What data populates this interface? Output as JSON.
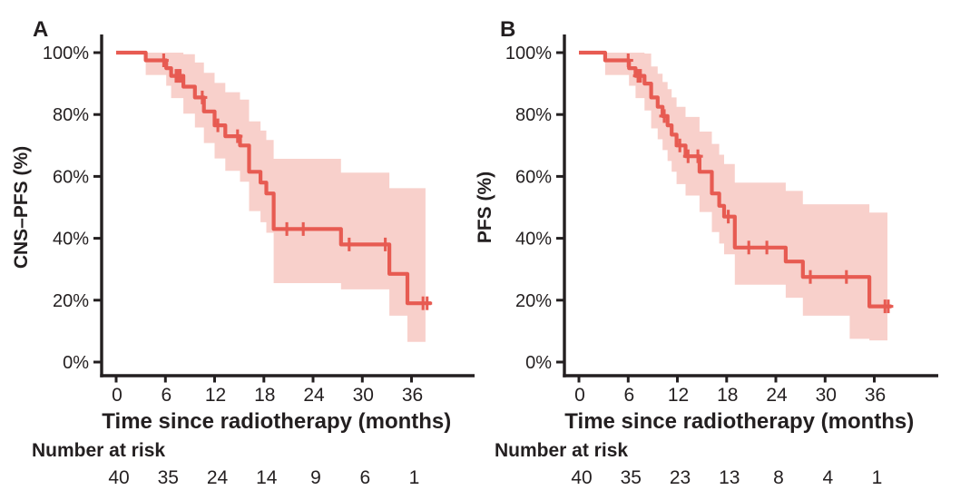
{
  "figure": {
    "description": "Two-panel Kaplan-Meier survival figure with 95% confidence bands and number-at-risk tables",
    "colors": {
      "curve": "#e75b52",
      "band": "#f8d0cb",
      "text": "#231f20",
      "axis": "#231f20",
      "background": "#ffffff"
    }
  },
  "chart_data": [
    {
      "type": "line",
      "subtype": "kaplan-meier-step",
      "panel_label": "A",
      "ylabel": "CNS–PFS (%)",
      "xlabel": "Time since radiotherapy (months)",
      "risk_label": "Number at risk",
      "risk_counts": [
        "40",
        "35",
        "24",
        "14",
        "9",
        "6",
        "1"
      ],
      "xticks": [
        0,
        6,
        12,
        18,
        24,
        30,
        36
      ],
      "xtick_labels": [
        "0",
        "6",
        "12",
        "18",
        "24",
        "30",
        "36"
      ],
      "ytick_values": [
        100,
        80,
        60,
        40,
        20,
        0
      ],
      "ytick_labels": [
        "100%",
        "80%",
        "60%",
        "40%",
        "20%",
        "0%"
      ],
      "xlim": [
        0,
        36
      ],
      "ylim": [
        0,
        100
      ],
      "end_time": 38.4,
      "steps": [
        [
          0,
          100
        ],
        [
          3.6,
          97.5
        ],
        [
          6.1,
          95
        ],
        [
          6.7,
          92.5
        ],
        [
          8.2,
          89
        ],
        [
          9.6,
          85.5
        ],
        [
          10.7,
          81
        ],
        [
          12.0,
          76.5
        ],
        [
          13.3,
          73
        ],
        [
          15.1,
          70
        ],
        [
          16.2,
          61.5
        ],
        [
          17.6,
          58
        ],
        [
          18.3,
          54.5
        ],
        [
          19.2,
          43
        ],
        [
          27.4,
          38
        ],
        [
          33.3,
          28.5
        ],
        [
          35.5,
          19
        ]
      ],
      "censors": [
        [
          5.8,
          97.5
        ],
        [
          7.3,
          92.5
        ],
        [
          7.55,
          92.5
        ],
        [
          7.8,
          92.5
        ],
        [
          10.5,
          85.5
        ],
        [
          12.4,
          76.5
        ],
        [
          14.8,
          73
        ],
        [
          20.8,
          43
        ],
        [
          22.8,
          43
        ],
        [
          28.4,
          38
        ],
        [
          32.8,
          38
        ],
        [
          37.4,
          19
        ],
        [
          37.9,
          19
        ]
      ],
      "ci_end_time": 37.7,
      "ci": [
        [
          3.6,
          92.8,
          100
        ],
        [
          6.1,
          89.3,
          100
        ],
        [
          6.7,
          85.3,
          100
        ],
        [
          8.2,
          80.3,
          99.5
        ],
        [
          9.6,
          75.8,
          96.8
        ],
        [
          10.7,
          70.8,
          93.5
        ],
        [
          12.0,
          65.8,
          90.2
        ],
        [
          13.3,
          61.8,
          87.2
        ],
        [
          15.1,
          58.3,
          84.8
        ],
        [
          16.2,
          48.8,
          77.8
        ],
        [
          17.6,
          45.2,
          74.8
        ],
        [
          18.3,
          41.8,
          71.8
        ],
        [
          19.2,
          25.5,
          65.7
        ],
        [
          27.4,
          23.5,
          61.2
        ],
        [
          33.3,
          15.0,
          56.2
        ],
        [
          35.5,
          6.5,
          56.2
        ]
      ]
    },
    {
      "type": "line",
      "subtype": "kaplan-meier-step",
      "panel_label": "B",
      "ylabel": "PFS (%)",
      "xlabel": "Time since radiotherapy (months)",
      "risk_label": "Number at risk",
      "risk_counts": [
        "40",
        "35",
        "23",
        "13",
        "8",
        "4",
        "1"
      ],
      "xticks": [
        0,
        6,
        12,
        18,
        24,
        30,
        36
      ],
      "xtick_labels": [
        "0",
        "6",
        "12",
        "18",
        "24",
        "30",
        "36"
      ],
      "ytick_values": [
        100,
        80,
        60,
        40,
        20,
        0
      ],
      "ytick_labels": [
        "100%",
        "80%",
        "60%",
        "40%",
        "20%",
        "0%"
      ],
      "xlim": [
        0,
        36
      ],
      "ylim": [
        0,
        100
      ],
      "end_time": 38.1,
      "steps": [
        [
          0,
          100
        ],
        [
          3.2,
          97.5
        ],
        [
          6.1,
          95
        ],
        [
          6.9,
          92.5
        ],
        [
          8.0,
          90
        ],
        [
          8.8,
          85.5
        ],
        [
          9.6,
          82.5
        ],
        [
          10.2,
          79.5
        ],
        [
          10.8,
          76.5
        ],
        [
          11.3,
          73.5
        ],
        [
          11.9,
          70
        ],
        [
          13.0,
          66.5
        ],
        [
          14.7,
          61.5
        ],
        [
          16.2,
          54.5
        ],
        [
          17.1,
          50.5
        ],
        [
          17.7,
          47
        ],
        [
          19.0,
          37
        ],
        [
          25.2,
          32.5
        ],
        [
          27.3,
          27.5
        ],
        [
          35.4,
          18
        ]
      ],
      "censors": [
        [
          6.0,
          97.5
        ],
        [
          7.2,
          92.5
        ],
        [
          7.5,
          92.5
        ],
        [
          10.4,
          79.5
        ],
        [
          12.3,
          70
        ],
        [
          13.3,
          66.5
        ],
        [
          14.5,
          66.5
        ],
        [
          18.2,
          47
        ],
        [
          20.7,
          37
        ],
        [
          22.9,
          37
        ],
        [
          28.2,
          27.5
        ],
        [
          32.6,
          27.5
        ],
        [
          37.3,
          18
        ],
        [
          37.7,
          18
        ]
      ],
      "ci_end_time": 37.6,
      "ci": [
        [
          3.2,
          92.8,
          100
        ],
        [
          6.1,
          89.3,
          100
        ],
        [
          6.9,
          85.3,
          100
        ],
        [
          8.0,
          81.3,
          99.7
        ],
        [
          8.8,
          75.5,
          95.5
        ],
        [
          9.6,
          72.0,
          93.2
        ],
        [
          10.2,
          68.5,
          90.5
        ],
        [
          10.8,
          65.0,
          88.2
        ],
        [
          11.3,
          61.5,
          85.5
        ],
        [
          11.9,
          57.5,
          82.5
        ],
        [
          13.0,
          53.8,
          79.2
        ],
        [
          14.7,
          48.5,
          74.5
        ],
        [
          16.2,
          42.0,
          70.5
        ],
        [
          17.1,
          38.3,
          67.0
        ],
        [
          17.7,
          34.8,
          64.0
        ],
        [
          19.0,
          25.0,
          58.0
        ],
        [
          25.2,
          20.8,
          55.3
        ],
        [
          27.3,
          15.0,
          51.0
        ],
        [
          33.0,
          7.5,
          51.0
        ],
        [
          35.4,
          7.0,
          48.3
        ]
      ]
    }
  ]
}
